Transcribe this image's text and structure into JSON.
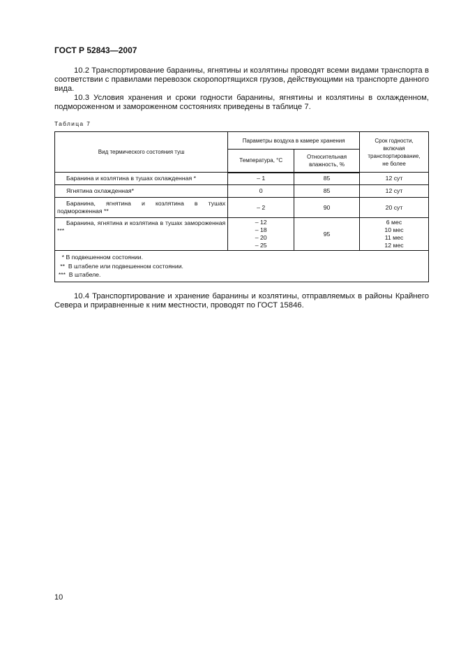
{
  "header": "ГОСТ Р 52843—2007",
  "paragraphs": {
    "p102": "10.2 Транспортирование баранины, ягнятины и козлятины проводят всеми видами транспорта в соответствии с правилами перевозок скоропортящихся грузов, действующими на транспорте данного вида.",
    "p103": "10.3 Условия хранения и сроки годности баранины, ягнятины и козлятины в охлажденном, подмороженном и замороженном состояниях приведены в таблице 7.",
    "p104": "10.4 Транспортирование и хранение баранины и козлятины, отправляемых в районы Крайнего Севера и приравненные к ним местности, проводят по ГОСТ 15846."
  },
  "table": {
    "caption": "Таблица 7",
    "head": {
      "col1": "Вид термического состояния туш",
      "group": "Параметры воздуха в камере хранения",
      "temp": "Температура, °С",
      "hum": "Относительная влажность, %",
      "shelf": "Срок годности, включая транспортирование, не более"
    },
    "rows": [
      {
        "name": "Баранина и козлятина в тушах охлажденная *",
        "temp": "– 1",
        "hum": "85",
        "shelf": "12 сут"
      },
      {
        "name": "Ягнятина охлажденная*",
        "temp": "0",
        "hum": "85",
        "shelf": "12 сут"
      },
      {
        "name": "Баранина, ягнятина и козлятина в тушах подмороженная **",
        "temp": "– 2",
        "hum": "90",
        "shelf": "20 сут"
      },
      {
        "name": "Баранина, ягнятина и козлятина в тушах замороженная ***",
        "temp": [
          "– 12",
          "– 18",
          "– 20",
          "– 25"
        ],
        "hum": "95",
        "shelf": [
          "6 мес",
          "10 мес",
          "11 мес",
          "12 мес"
        ]
      }
    ],
    "footnotes": [
      "    * В подвешенном состоянии.",
      "   **  В штабеле или подвешенном состоянии.",
      "  ***  В штабеле."
    ]
  },
  "page_number": "10"
}
